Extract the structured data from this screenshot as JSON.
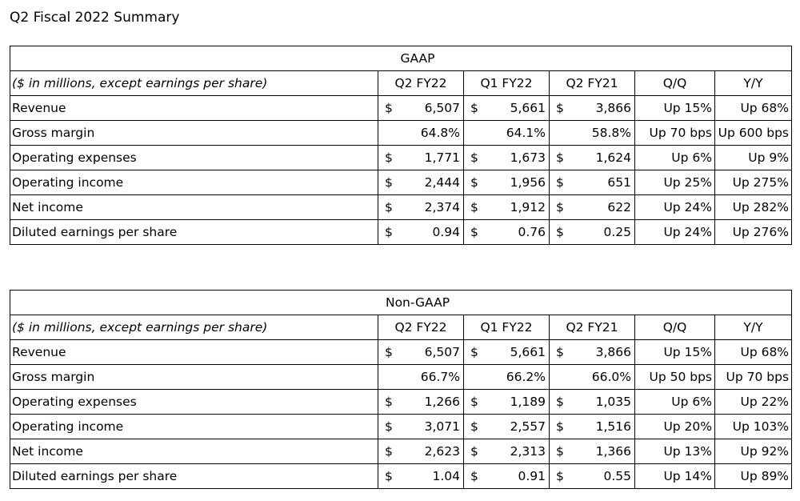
{
  "page_title": "Q2 Fiscal 2022 Summary",
  "note": "($ in millions, except earnings per share)",
  "column_headers": [
    "Q2 FY22",
    "Q1 FY22",
    "Q2 FY21",
    "Q/Q",
    "Y/Y"
  ],
  "currency_symbol": "$",
  "gaap": {
    "title": "GAAP",
    "rows": [
      {
        "label": "Revenue",
        "currency": true,
        "q2fy22": "6,507",
        "q1fy22": "5,661",
        "q2fy21": "3,866",
        "qq": "Up 15%",
        "yy": "Up 68%"
      },
      {
        "label": "Gross margin",
        "currency": false,
        "q2fy22": "64.8%",
        "q1fy22": "64.1%",
        "q2fy21": "58.8%",
        "qq": "Up 70 bps",
        "yy": "Up 600 bps"
      },
      {
        "label": "Operating expenses",
        "currency": true,
        "q2fy22": "1,771",
        "q1fy22": "1,673",
        "q2fy21": "1,624",
        "qq": "Up 6%",
        "yy": "Up 9%"
      },
      {
        "label": "Operating income",
        "currency": true,
        "q2fy22": "2,444",
        "q1fy22": "1,956",
        "q2fy21": "651",
        "qq": "Up 25%",
        "yy": "Up 275%"
      },
      {
        "label": "Net income",
        "currency": true,
        "q2fy22": "2,374",
        "q1fy22": "1,912",
        "q2fy21": "622",
        "qq": "Up 24%",
        "yy": "Up 282%"
      },
      {
        "label": "Diluted earnings per share",
        "currency": true,
        "q2fy22": "0.94",
        "q1fy22": "0.76",
        "q2fy21": "0.25",
        "qq": "Up 24%",
        "yy": "Up 276%"
      }
    ]
  },
  "non_gaap": {
    "title": "Non-GAAP",
    "rows": [
      {
        "label": "Revenue",
        "currency": true,
        "q2fy22": "6,507",
        "q1fy22": "5,661",
        "q2fy21": "3,866",
        "qq": "Up 15%",
        "yy": "Up 68%"
      },
      {
        "label": "Gross margin",
        "currency": false,
        "q2fy22": "66.7%",
        "q1fy22": "66.2%",
        "q2fy21": "66.0%",
        "qq": "Up 50 bps",
        "yy": "Up 70 bps"
      },
      {
        "label": "Operating expenses",
        "currency": true,
        "q2fy22": "1,266",
        "q1fy22": "1,189",
        "q2fy21": "1,035",
        "qq": "Up 6%",
        "yy": "Up 22%"
      },
      {
        "label": "Operating income",
        "currency": true,
        "q2fy22": "3,071",
        "q1fy22": "2,557",
        "q2fy21": "1,516",
        "qq": "Up 20%",
        "yy": "Up 103%"
      },
      {
        "label": "Net income",
        "currency": true,
        "q2fy22": "2,623",
        "q1fy22": "2,313",
        "q2fy21": "1,366",
        "qq": "Up 13%",
        "yy": "Up 92%"
      },
      {
        "label": "Diluted earnings per share",
        "currency": true,
        "q2fy22": "1.04",
        "q1fy22": "0.91",
        "q2fy21": "0.55",
        "qq": "Up 14%",
        "yy": "Up 89%"
      }
    ]
  }
}
